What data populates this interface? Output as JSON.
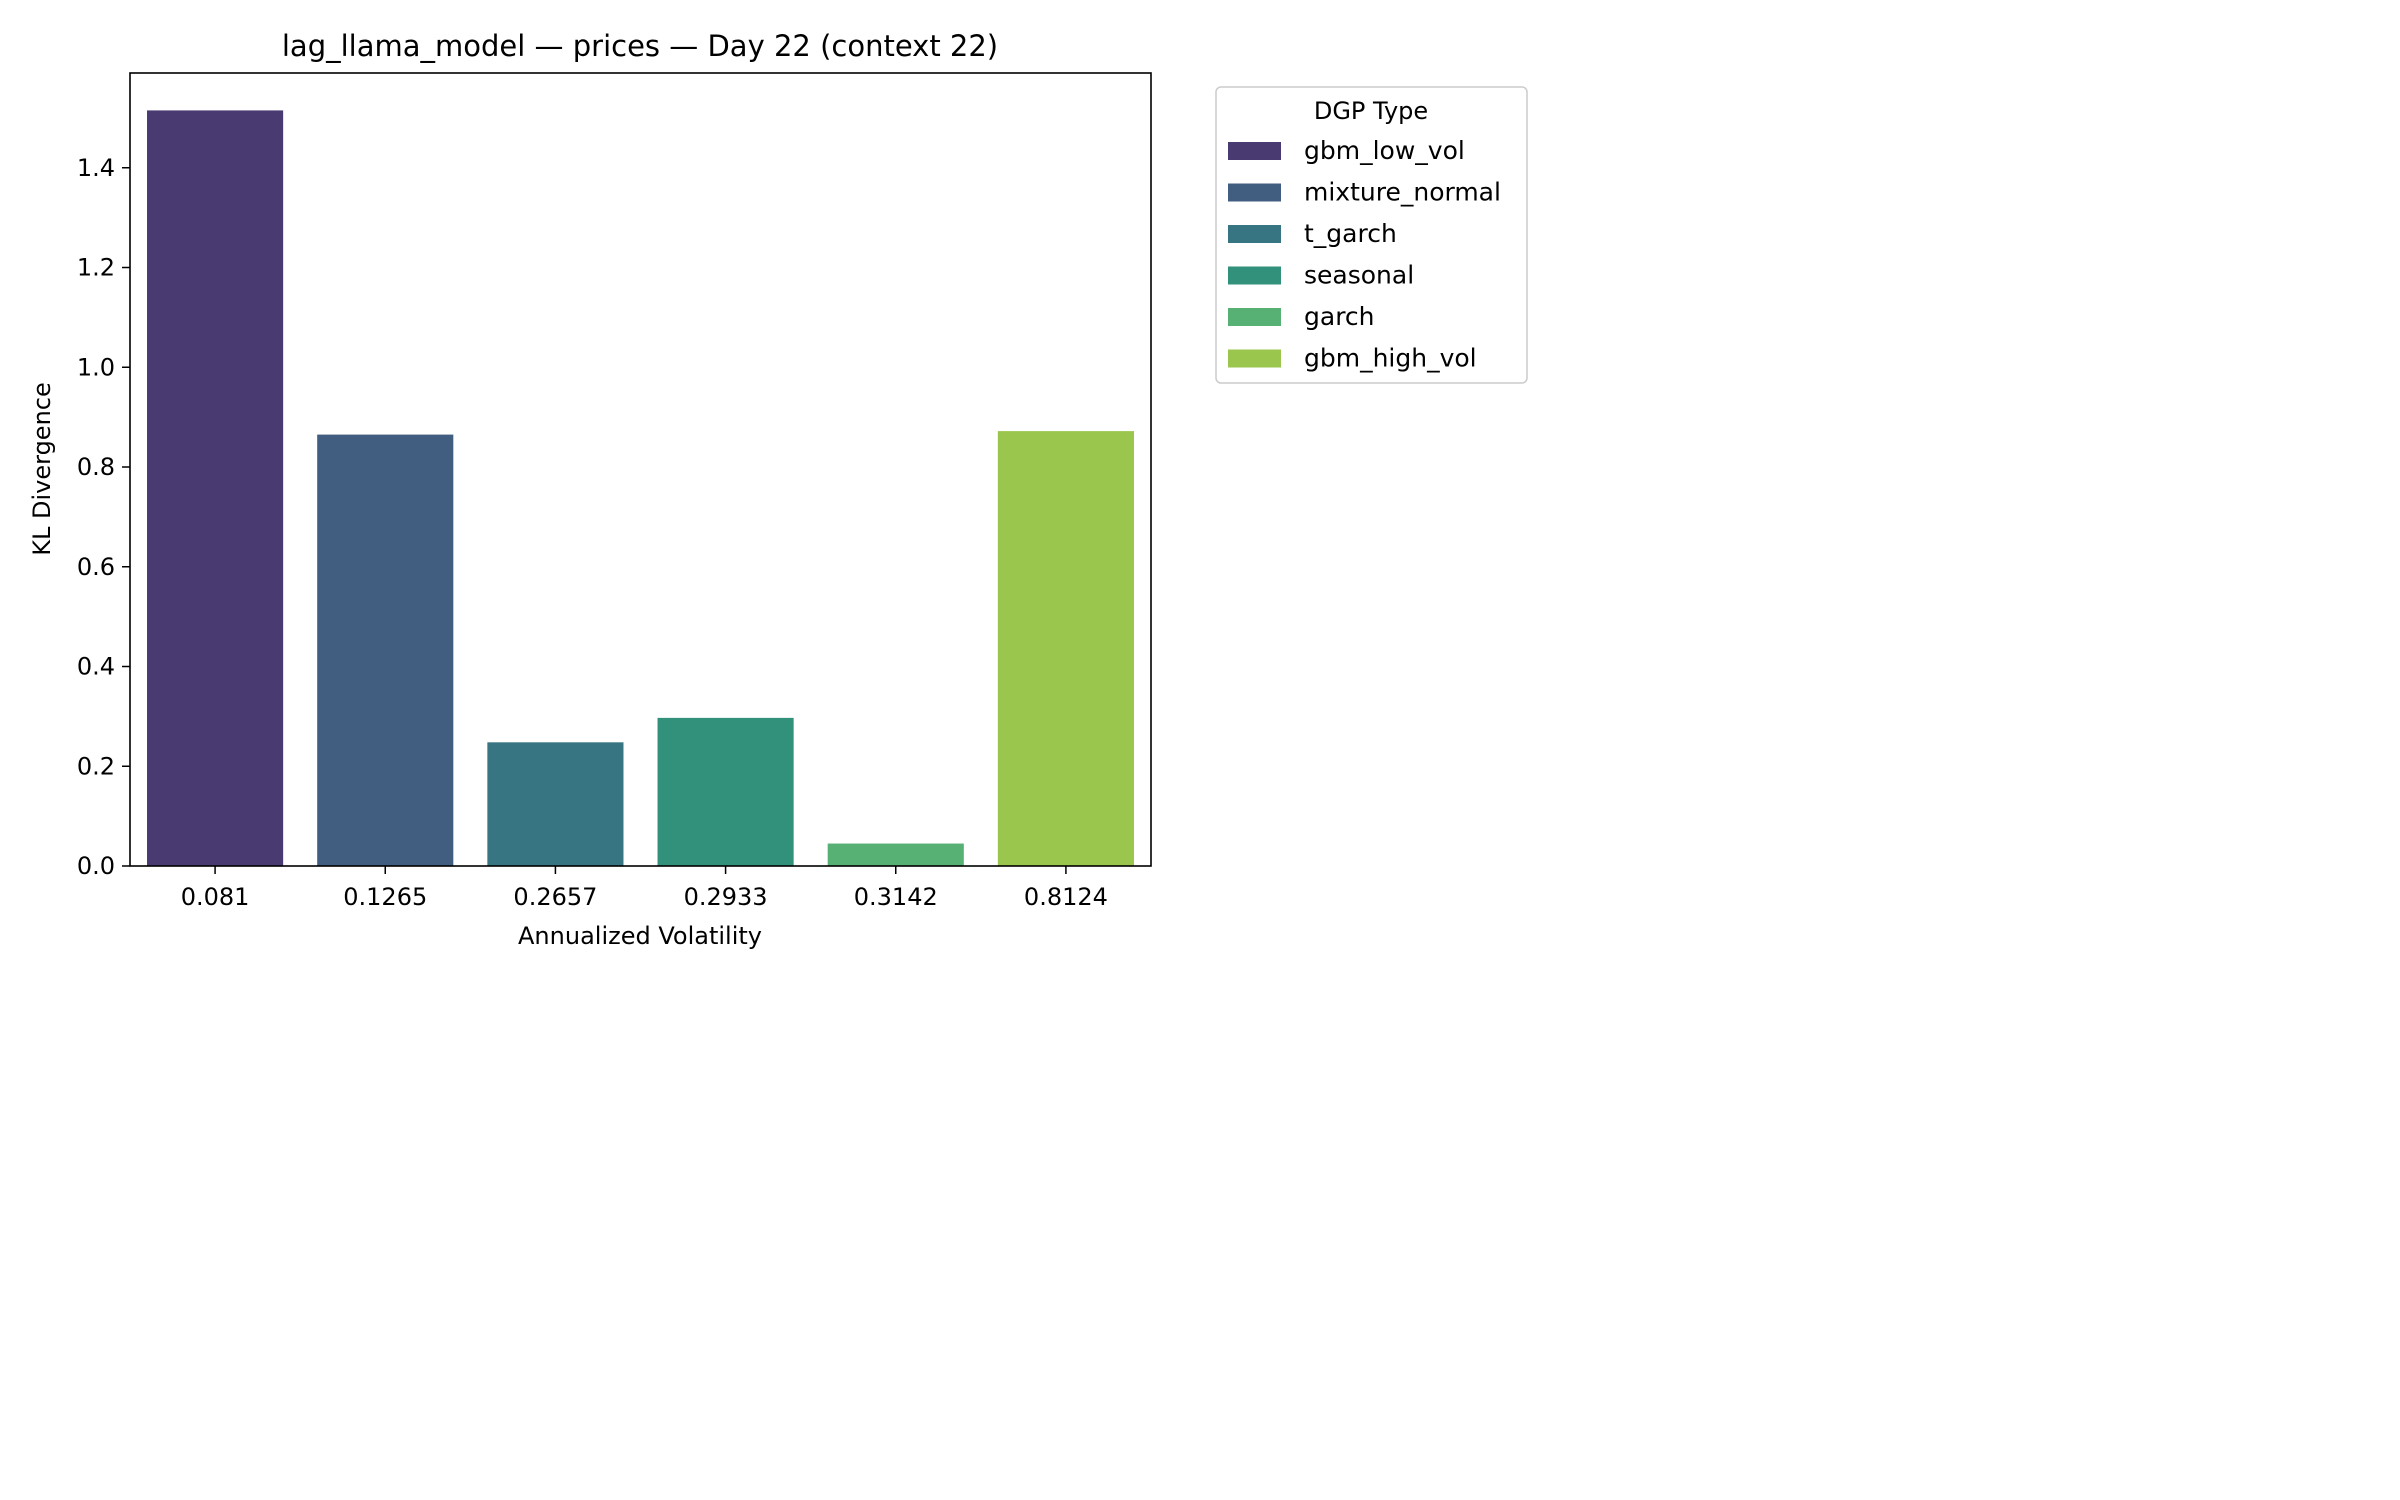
{
  "chart_data": {
    "type": "bar",
    "title": "lag_llama_model — prices — Day 22 (context 22)",
    "xlabel": "Annualized Volatility",
    "ylabel": "KL Divergence",
    "categories": [
      "0.081",
      "0.1265",
      "0.2657",
      "0.2933",
      "0.3142",
      "0.8124"
    ],
    "values": [
      1.515,
      0.865,
      0.248,
      0.297,
      0.045,
      0.872
    ],
    "dgp_types": [
      "gbm_low_vol",
      "mixture_normal",
      "t_garch",
      "seasonal",
      "garch",
      "gbm_high_vol"
    ],
    "colors": [
      "#4a3a72",
      "#415e80",
      "#367581",
      "#32917b",
      "#58b174",
      "#9bc64d"
    ],
    "ylim": [
      0,
      1.59
    ],
    "yticks": [
      "0.0",
      "0.2",
      "0.4",
      "0.6",
      "0.8",
      "1.0",
      "1.2",
      "1.4"
    ],
    "ytick_values": [
      0,
      0.2,
      0.4,
      0.6,
      0.8,
      1.0,
      1.2,
      1.4
    ],
    "grid": false,
    "legend": {
      "title": "DGP Type",
      "placement": "outside-right-top",
      "entries": [
        "gbm_low_vol",
        "mixture_normal",
        "t_garch",
        "seasonal",
        "garch",
        "gbm_high_vol"
      ]
    }
  }
}
